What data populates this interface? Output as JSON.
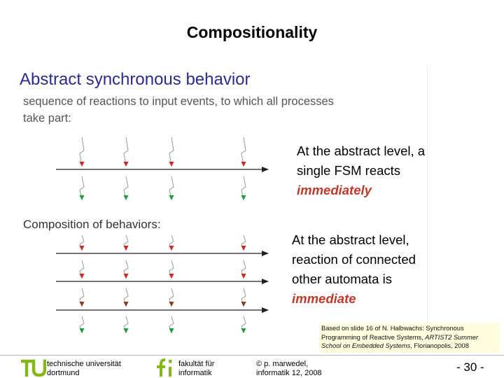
{
  "slide": {
    "title": "Compositionality"
  },
  "figure": {
    "heading": "Abstract synchronous behavior",
    "sub_line1": "sequence of reactions to input events, to which all processes",
    "sub_line2": "take part:",
    "composition_heading": "Composition of behaviors:"
  },
  "notes": {
    "first": {
      "line1": "At the abstract level, a",
      "line2": "single FSM reacts",
      "emphasis": "immediately"
    },
    "second": {
      "line1": "At the abstract level,",
      "line2": "reaction of connected",
      "line3": "other automata is",
      "emphasis": "immediate"
    }
  },
  "reference": {
    "line1": "Based on slide 16 of N. Halbwachs: Synchronous",
    "line2_plain": "Programming of Reactive Systems, ",
    "line2_italic": "ARTIST2 Summer",
    "line3_italic": "School on Embedded Systems",
    "line3_plain": ", Florianopolis, 2008"
  },
  "footer": {
    "tu_line1": "technische universität",
    "tu_line2": "dortmund",
    "fi_line1": "fakultät für",
    "fi_line2": "informatik",
    "copyright_symbol": "©",
    "author_line1": "p. marwedel,",
    "author_line2": "informatik 12,  2008",
    "page_label": "-  30 -"
  },
  "colors": {
    "title_blue": "#2b2b8f",
    "emphasis_red": "#c0392b",
    "arrow_red": "#cc2a1d",
    "arrow_green": "#1f9a3a",
    "arrow_brown": "#8b3a1c",
    "logo_green": "#84b817"
  }
}
